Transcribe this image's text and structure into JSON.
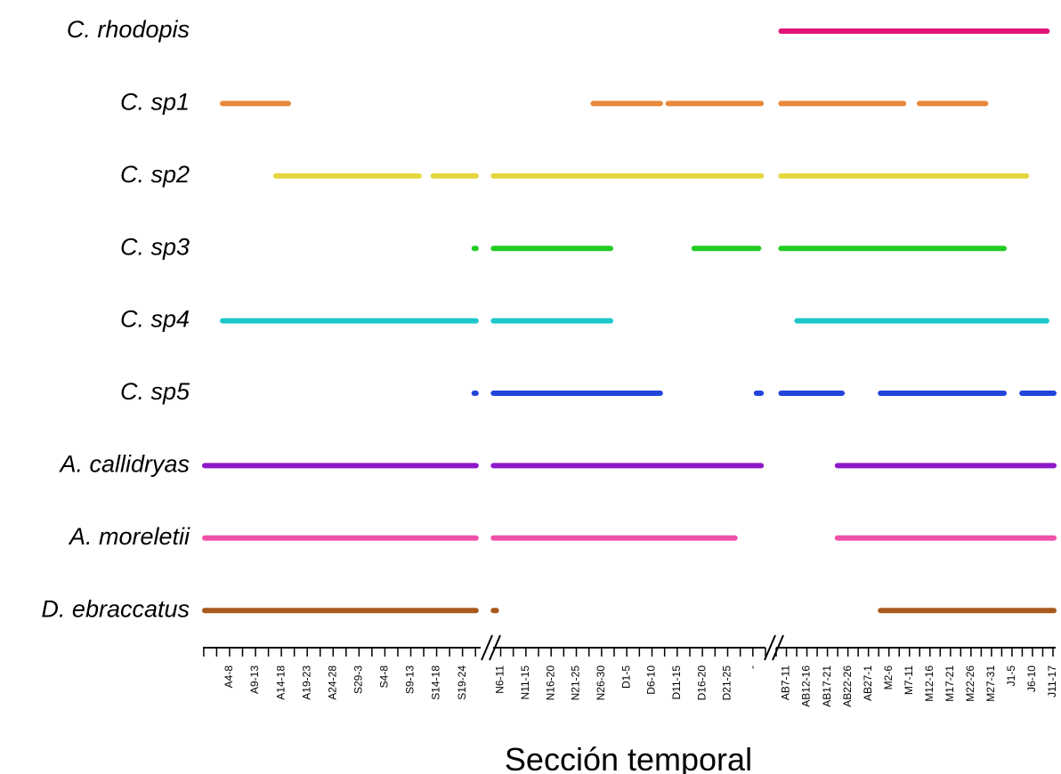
{
  "chart_data": {
    "type": "timeline",
    "x_label": "Sección temporal",
    "categories": [
      "A4-8",
      "A9-13",
      "A14-18",
      "A19-23",
      "A24-28",
      "S29-3",
      "S4-8",
      "S9-13",
      "S14-18",
      "S19-24",
      "N6-11",
      "N11-15",
      "N16-20",
      "N21-25",
      "N26-30",
      "D1-5",
      "D6-10",
      "D11-15",
      "D16-20",
      "D21-25",
      "-",
      "AB7-11",
      "AB12-16",
      "AB17-21",
      "AB22-26",
      "AB27-1",
      "M2-6",
      "M7-11",
      "M12-16",
      "M17-21",
      "M22-26",
      "M27-31",
      "J1-5",
      "J6-10",
      "J11-17"
    ],
    "xlim_sections": [
      [
        -1.03,
        9.7
      ],
      [
        9.7,
        20.5
      ],
      [
        20.5,
        34.13
      ]
    ],
    "series": [
      {
        "name": "C. rhodopis",
        "color": "#e0147a",
        "spans": [
          [
            20.65,
            33.8
          ]
        ]
      },
      {
        "name": "C. sp1",
        "color": "#e8883a",
        "spans": [
          [
            -0.34,
            2.34
          ],
          [
            13.6,
            16.4
          ],
          [
            16.57,
            20.4
          ],
          [
            20.65,
            26.8
          ],
          [
            27.4,
            30.8
          ]
        ]
      },
      {
        "name": "C. sp2",
        "color": "#e6d63e",
        "spans": [
          [
            1.72,
            7.39
          ],
          [
            7.8,
            9.59
          ],
          [
            9.64,
            20.4
          ],
          [
            20.65,
            32.8
          ]
        ]
      },
      {
        "name": "C. sp3",
        "color": "#22cc22",
        "spans": [
          [
            9.38,
            9.59
          ],
          [
            9.64,
            14.43
          ],
          [
            17.6,
            20.3
          ],
          [
            20.65,
            31.7
          ]
        ]
      },
      {
        "name": "C. sp4",
        "color": "#1ec8c8",
        "spans": [
          [
            -0.34,
            9.59
          ],
          [
            9.64,
            14.43
          ],
          [
            21.43,
            33.78
          ]
        ]
      },
      {
        "name": "C. sp5",
        "color": "#2244dd",
        "spans": [
          [
            9.38,
            9.59
          ],
          [
            9.64,
            16.4
          ],
          [
            20.07,
            20.4
          ],
          [
            20.65,
            23.8
          ],
          [
            25.5,
            31.7
          ],
          [
            32.4,
            34.13
          ]
        ]
      },
      {
        "name": "A. callidryas",
        "color": "#8e18c8",
        "spans": [
          [
            -1.03,
            9.59
          ],
          [
            9.64,
            20.4
          ],
          [
            23.4,
            34.13
          ]
        ]
      },
      {
        "name": "A. moreletii",
        "color": "#f050a8",
        "spans": [
          [
            -1.03,
            9.59
          ],
          [
            9.64,
            19.36
          ],
          [
            23.4,
            34.13
          ]
        ]
      },
      {
        "name": "D. ebraccatus",
        "color": "#a85a1e",
        "spans": [
          [
            -1.03,
            9.59
          ],
          [
            9.64,
            9.9
          ],
          [
            25.5,
            34.13
          ]
        ]
      }
    ]
  }
}
